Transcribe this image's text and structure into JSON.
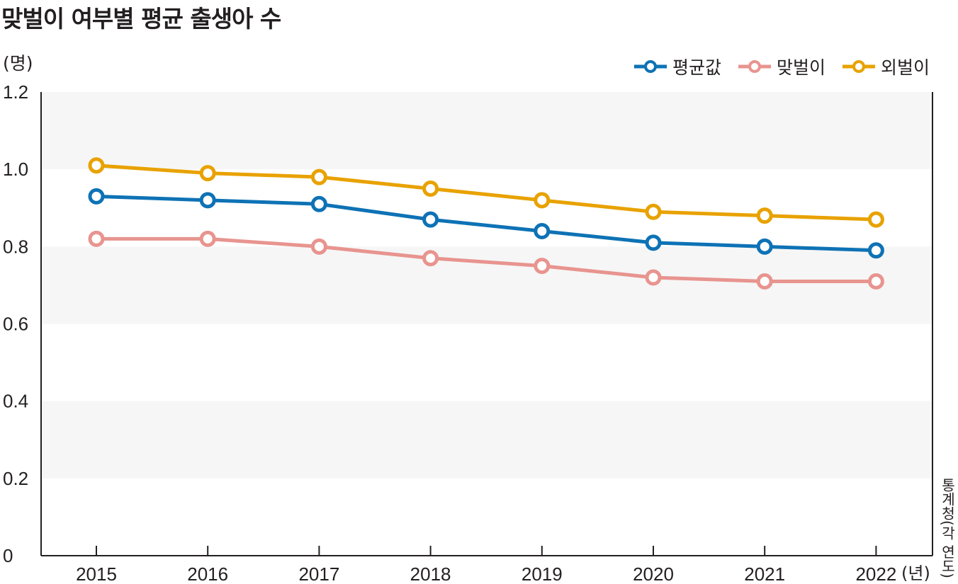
{
  "chart_data": {
    "type": "line",
    "title": "맞벌이 여부별 평균 출생아 수",
    "ylabel": "(명)",
    "xlabel": "(년)",
    "source": "통계청(각 연도)",
    "categories": [
      "2015",
      "2016",
      "2017",
      "2018",
      "2019",
      "2020",
      "2021",
      "2022"
    ],
    "ylim": [
      0,
      1.2
    ],
    "yticks": [
      "0",
      "0.2",
      "0.4",
      "0.6",
      "0.8",
      "1.0",
      "1.2"
    ],
    "legend_position": "top-right",
    "series": [
      {
        "name": "평균값",
        "color": "#0e72b5",
        "values": [
          0.93,
          0.92,
          0.91,
          0.87,
          0.84,
          0.81,
          0.8,
          0.79
        ]
      },
      {
        "name": "맞벌이",
        "color": "#e8948f",
        "values": [
          0.82,
          0.82,
          0.8,
          0.77,
          0.75,
          0.72,
          0.71,
          0.71
        ]
      },
      {
        "name": "외벌이",
        "color": "#e8a200",
        "values": [
          1.01,
          0.99,
          0.98,
          0.95,
          0.92,
          0.89,
          0.88,
          0.87
        ]
      }
    ]
  }
}
